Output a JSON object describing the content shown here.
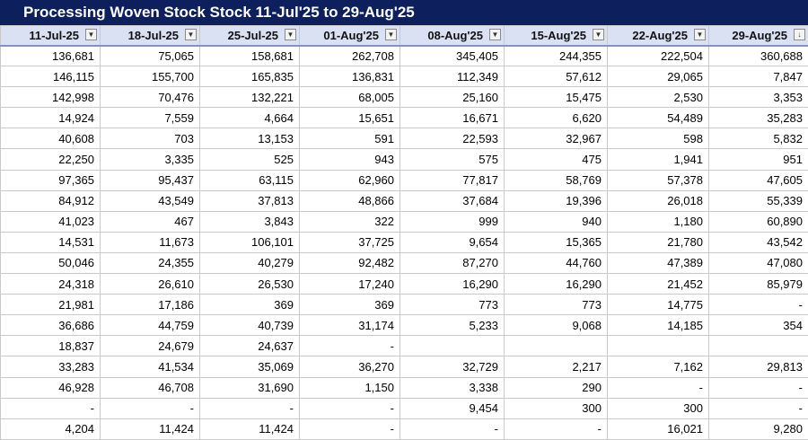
{
  "title": "Processing Woven Stock Stock 11-Jul'25 to 29-Aug'25",
  "columns": [
    {
      "label": "11-Jul-25",
      "filter_icon": "dropdown-arrow"
    },
    {
      "label": "18-Jul-25",
      "filter_icon": "dropdown-arrow"
    },
    {
      "label": "25-Jul-25",
      "filter_icon": "dropdown-arrow"
    },
    {
      "label": "01-Aug'25",
      "filter_icon": "dropdown-arrow"
    },
    {
      "label": "08-Aug'25",
      "filter_icon": "dropdown-arrow"
    },
    {
      "label": "15-Aug'25",
      "filter_icon": "dropdown-arrow"
    },
    {
      "label": "22-Aug'25",
      "filter_icon": "dropdown-arrow"
    },
    {
      "label": "29-Aug'25",
      "filter_icon": "sort-descending-filter"
    }
  ],
  "rows": [
    [
      "136,681",
      "75,065",
      "158,681",
      "262,708",
      "345,405",
      "244,355",
      "222,504",
      "360,688"
    ],
    [
      "146,115",
      "155,700",
      "165,835",
      "136,831",
      "112,349",
      "57,612",
      "29,065",
      "7,847"
    ],
    [
      "142,998",
      "70,476",
      "132,221",
      "68,005",
      "25,160",
      "15,475",
      "2,530",
      "3,353"
    ],
    [
      "14,924",
      "7,559",
      "4,664",
      "15,651",
      "16,671",
      "6,620",
      "54,489",
      "35,283"
    ],
    [
      "40,608",
      "703",
      "13,153",
      "591",
      "22,593",
      "32,967",
      "598",
      "5,832"
    ],
    [
      "22,250",
      "3,335",
      "525",
      "943",
      "575",
      "475",
      "1,941",
      "951"
    ],
    [
      "97,365",
      "95,437",
      "63,115",
      "62,960",
      "77,817",
      "58,769",
      "57,378",
      "47,605"
    ],
    [
      "84,912",
      "43,549",
      "37,813",
      "48,866",
      "37,684",
      "19,396",
      "26,018",
      "55,339"
    ],
    [
      "41,023",
      "467",
      "3,843",
      "322",
      "999",
      "940",
      "1,180",
      "60,890"
    ],
    [
      "14,531",
      "11,673",
      "106,101",
      "37,725",
      "9,654",
      "15,365",
      "21,780",
      "43,542"
    ],
    [
      "50,046",
      "24,355",
      "40,279",
      "92,482",
      "87,270",
      "44,760",
      "47,389",
      "47,080"
    ],
    [
      "24,318",
      "26,610",
      "26,530",
      "17,240",
      "16,290",
      "16,290",
      "21,452",
      "85,979"
    ],
    [
      "21,981",
      "17,186",
      "369",
      "369",
      "773",
      "773",
      "14,775",
      "-"
    ],
    [
      "36,686",
      "44,759",
      "40,739",
      "31,174",
      "5,233",
      "9,068",
      "14,185",
      "354"
    ],
    [
      "18,837",
      "24,679",
      "24,637",
      "-",
      "",
      "",
      "",
      ""
    ],
    [
      "33,283",
      "41,534",
      "35,069",
      "36,270",
      "32,729",
      "2,217",
      "7,162",
      "29,813"
    ],
    [
      "46,928",
      "46,708",
      "31,690",
      "1,150",
      "3,338",
      "290",
      "-",
      "-"
    ],
    [
      "-",
      "-",
      "-",
      "-",
      "9,454",
      "300",
      "300",
      "-"
    ],
    [
      "4,204",
      "11,424",
      "11,424",
      "-",
      "-",
      "-",
      "16,021",
      "9,280"
    ]
  ]
}
